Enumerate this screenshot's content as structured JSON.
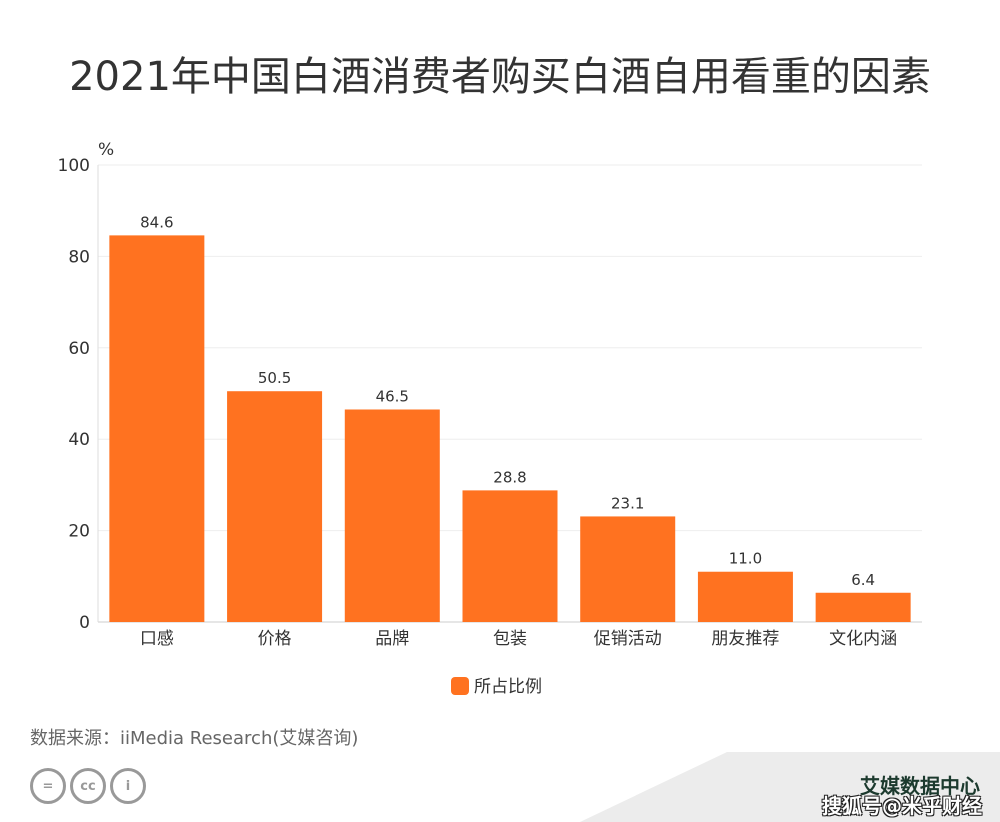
{
  "chart_data": {
    "type": "bar",
    "title": "2021年中国白酒消费者购买白酒自用看重的因素",
    "ylabel": "%",
    "ylim": [
      0,
      100
    ],
    "yticks": [
      0,
      20,
      40,
      60,
      80,
      100
    ],
    "categories": [
      "口感",
      "价格",
      "品牌",
      "包装",
      "促销活动",
      "朋友推荐",
      "文化内涵"
    ],
    "series": [
      {
        "name": "所占比例",
        "values": [
          84.6,
          50.5,
          46.5,
          28.8,
          23.1,
          11.0,
          6.4
        ],
        "color": "#ff7220"
      }
    ],
    "grid": true,
    "legend": "bottom"
  },
  "footer": {
    "source": "数据来源：iiMedia Research(艾媒咨询)",
    "brand": "艾媒数据中心",
    "watermark": "搜狐号@米乎财经",
    "cc_icons": [
      "nd-icon",
      "cc-icon",
      "by-icon"
    ]
  }
}
